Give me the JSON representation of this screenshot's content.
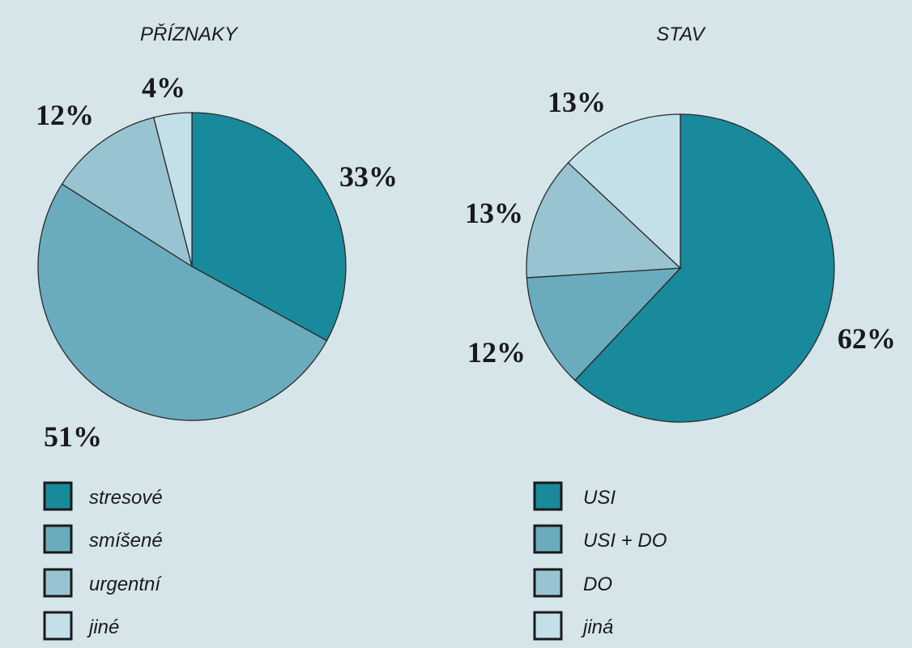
{
  "chart_data": [
    {
      "type": "pie",
      "title": "PŘÍZNAKY",
      "categories": [
        "stresové",
        "smíšené",
        "urgentní",
        "jiné"
      ],
      "values": [
        33,
        51,
        12,
        4
      ],
      "value_labels": [
        "33%",
        "51%",
        "12%",
        "4%"
      ],
      "colors": [
        "#198a9c",
        "#6aacbd",
        "#98c4d1",
        "#c3e0e8"
      ],
      "legend_position": "bottom"
    },
    {
      "type": "pie",
      "title": "STAV",
      "categories": [
        "USI",
        "USI + DO",
        "DO",
        "jiná"
      ],
      "values": [
        62,
        12,
        13,
        13
      ],
      "value_labels": [
        "62%",
        "12%",
        "13%",
        "13%"
      ],
      "colors": [
        "#198a9c",
        "#6aacbd",
        "#98c4d1",
        "#c3e0e8"
      ],
      "legend_position": "bottom"
    }
  ]
}
